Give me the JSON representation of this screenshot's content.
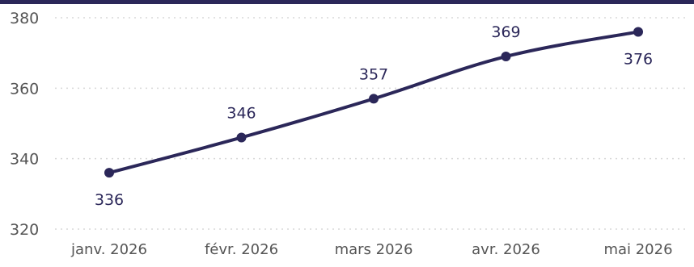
{
  "chart_data": {
    "type": "line",
    "title": "",
    "xlabel": "",
    "ylabel": "",
    "categories": [
      "janv. 2026",
      "févr. 2026",
      "mars 2026",
      "avr. 2026",
      "mai 2026"
    ],
    "series": [
      {
        "values": [
          336,
          346,
          357,
          369,
          376
        ],
        "color": "#2b2759"
      }
    ],
    "ylim": [
      320,
      380
    ],
    "yticks": [
      320,
      340,
      360,
      380
    ],
    "data_label_positions": [
      "below",
      "above",
      "above",
      "above",
      "below"
    ],
    "grid": "horizontal-dotted",
    "legend": "none"
  },
  "colors": {
    "series": "#2b2759",
    "top_bar": "#2b2759",
    "grid": "#d9d9d9",
    "tick_text": "#555555"
  }
}
